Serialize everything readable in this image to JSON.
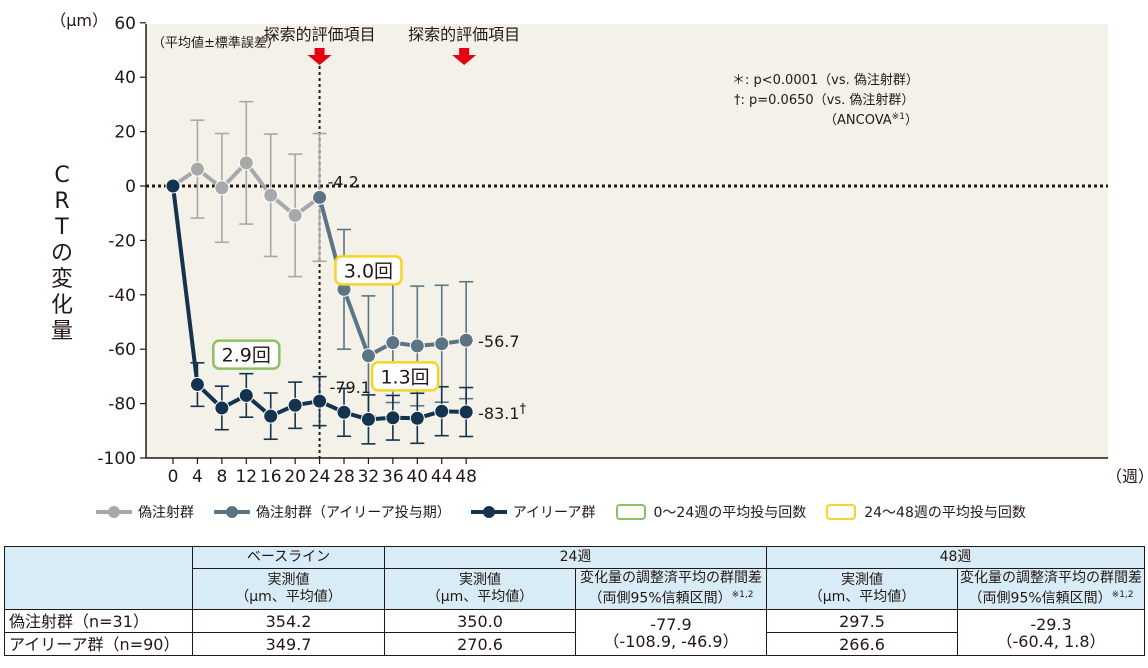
{
  "chart_data": {
    "type": "line",
    "y_unit_label": "（μm）",
    "ylabel": "CRTの変化量",
    "x_unit_label": "（週）",
    "ylim": [
      -100,
      60
    ],
    "y_ticks": [
      60,
      40,
      20,
      0,
      -20,
      -40,
      -60,
      -80,
      -100
    ],
    "x": [
      0,
      4,
      8,
      12,
      16,
      20,
      24,
      28,
      32,
      36,
      40,
      44,
      48
    ],
    "grid": false,
    "legend_position": "bottom",
    "note_topleft": "（平均値±標準誤差）",
    "series": [
      {
        "name": "偽注射群",
        "color": "#a7a8a9",
        "x": [
          0,
          4,
          8,
          12,
          16,
          20,
          24
        ],
        "y": [
          0,
          6.2,
          -0.7,
          8.5,
          -3.4,
          -10.8,
          -4.2
        ],
        "err": [
          0,
          18,
          20,
          22.5,
          22.5,
          22.5,
          23.5
        ]
      },
      {
        "name": "偽注射群（アイリーア投与期）",
        "color": "#5b7585",
        "x": [
          24,
          28,
          32,
          36,
          40,
          44,
          48
        ],
        "y": [
          -4.2,
          -38,
          -62.4,
          -57.6,
          -58.8,
          -58,
          -56.7
        ],
        "err": [
          0,
          22,
          22,
          22,
          22,
          21.5,
          21.5
        ]
      },
      {
        "name": "アイリーア群",
        "color": "#13334f",
        "x": [
          0,
          4,
          8,
          12,
          16,
          20,
          24,
          28,
          32,
          36,
          40,
          44,
          48
        ],
        "y": [
          0,
          -73,
          -81.6,
          -77,
          -84.6,
          -80.6,
          -79.1,
          -83.2,
          -85.8,
          -85.2,
          -85.4,
          -82.8,
          -83.1
        ],
        "err": [
          0,
          8,
          8,
          8,
          8.5,
          8.5,
          9,
          8.8,
          9,
          8.2,
          9.2,
          9,
          9
        ]
      }
    ],
    "point_labels": [
      {
        "text": "-4.2",
        "series": 1,
        "x": 24
      },
      {
        "text": "-79.1",
        "mark": "*",
        "series": 2,
        "x": 24
      },
      {
        "text": "-56.7",
        "series": 1,
        "x": 48
      },
      {
        "text": "-83.1",
        "mark": "†",
        "series": 2,
        "x": 48
      }
    ],
    "phase_labels": [
      {
        "text": "探索的評価項目",
        "x": 24
      },
      {
        "text": "探索的評価項目",
        "x": 48
      }
    ],
    "stat_notes": [
      "＊: p<0.0001（vs. 偽注射群）",
      "†: p=0.0650（vs. 偽注射群）",
      "（ANCOVA",
      "※1",
      "）"
    ],
    "dose_boxes": [
      {
        "text": "2.9回",
        "color": "#8cc063",
        "x": 12,
        "y": -62
      },
      {
        "text": "3.0回",
        "color": "#f2d629",
        "x": 32,
        "y": -31
      },
      {
        "text": "1.3回",
        "color": "#f2d629",
        "x": 38,
        "y": -70
      }
    ]
  },
  "legend": [
    {
      "label": "偽注射群",
      "kind": "line",
      "color": "#a7a8a9"
    },
    {
      "label": "偽注射群（アイリーア投与期）",
      "kind": "line",
      "color": "#5b7585"
    },
    {
      "label": "アイリーア群",
      "kind": "line",
      "color": "#13334f"
    },
    {
      "label": "0〜24週の平均投与回数",
      "kind": "box",
      "color": "#8cc063"
    },
    {
      "label": "24〜48週の平均投与回数",
      "kind": "box",
      "color": "#f2d629"
    }
  ],
  "table": {
    "baseline": "ベースライン",
    "week24": "24週",
    "week48": "48週",
    "measured_1": "実測値",
    "measured_2": "（μm、平均値）",
    "diff_1": "変化量の調整済平均の群間差",
    "diff_2": "（両側95%信頼区間）",
    "diff_note": "※1,2",
    "rows": [
      {
        "label": "偽注射群（n=31）",
        "baseline": "354.2",
        "w24": "350.0",
        "w48": "297.5"
      },
      {
        "label": "アイリーア群（n=90）",
        "baseline": "349.7",
        "w24": "270.6",
        "w48": "266.6"
      }
    ],
    "diff24_1": "-77.9",
    "diff24_2": "（-108.9, -46.9）",
    "diff48_1": "-29.3",
    "diff48_2": "（-60.4, 1.8）"
  }
}
